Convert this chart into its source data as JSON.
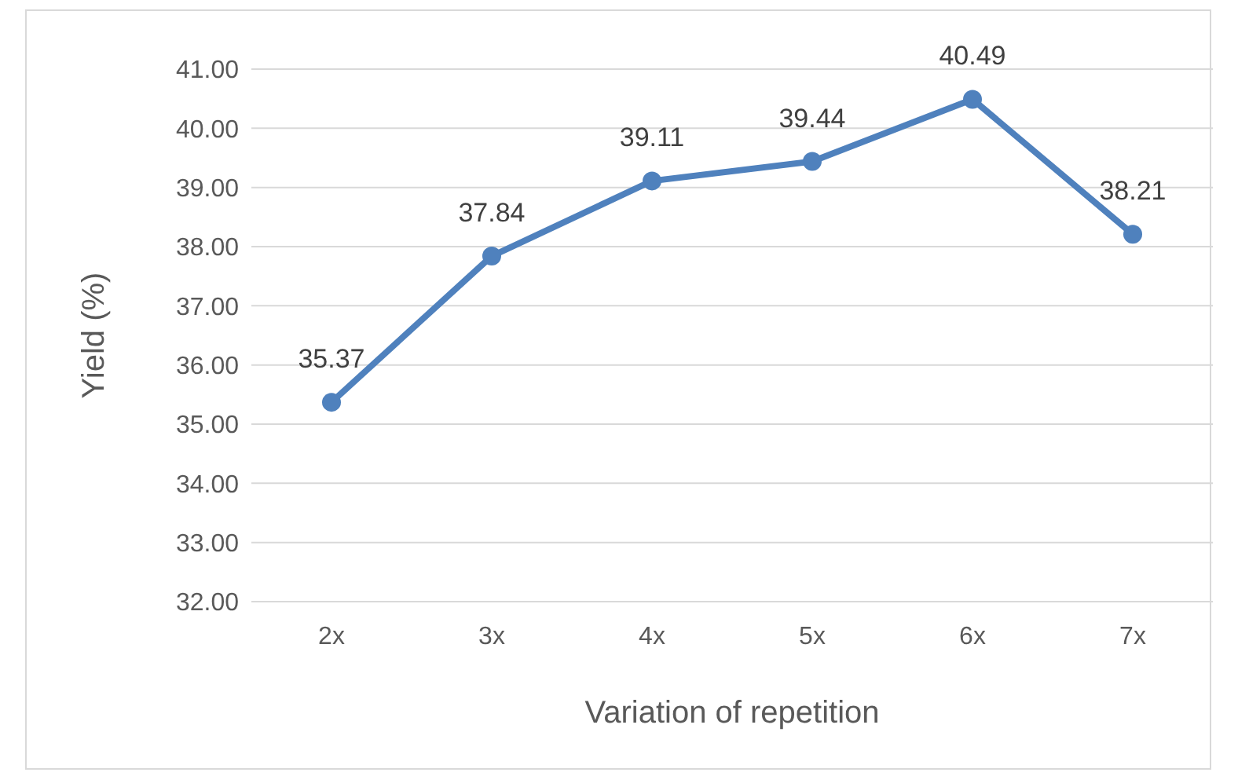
{
  "chart_data": {
    "type": "line",
    "xlabel": "Variation of repetition",
    "ylabel": "Yield (%)",
    "categories": [
      "2x",
      "3x",
      "4x",
      "5x",
      "6x",
      "7x"
    ],
    "series": [
      {
        "color": "#4f81bd",
        "values": [
          35.37,
          37.84,
          39.11,
          39.44,
          40.49,
          38.21
        ]
      }
    ],
    "ylim": [
      32,
      41
    ],
    "yticks": [
      {
        "value": 32,
        "label": "32.00"
      },
      {
        "value": 33,
        "label": "33.00"
      },
      {
        "value": 34,
        "label": "34.00"
      },
      {
        "value": 35,
        "label": "35.00"
      },
      {
        "value": 36,
        "label": "36.00"
      },
      {
        "value": 37,
        "label": "37.00"
      },
      {
        "value": 38,
        "label": "38.00"
      },
      {
        "value": 39,
        "label": "39.00"
      },
      {
        "value": 40,
        "label": "40.00"
      },
      {
        "value": 41,
        "label": "41.00"
      }
    ],
    "grid": "y",
    "data_labels": true,
    "marker": "circle",
    "line_style": "solid"
  }
}
